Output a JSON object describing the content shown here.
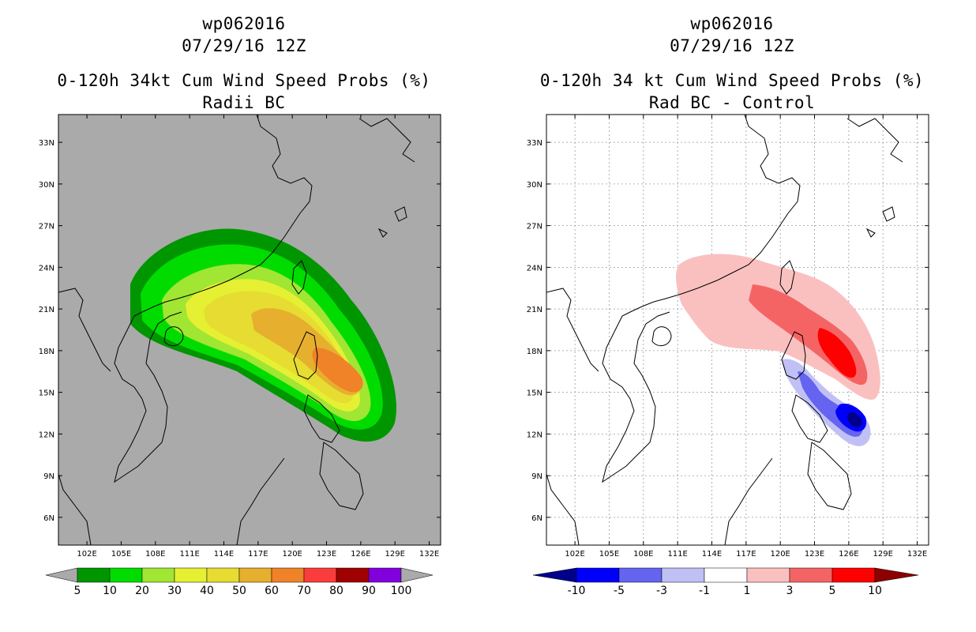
{
  "left_panel": {
    "storm_id": "wp062016",
    "datetime": "07/29/16 12Z",
    "product": "0-120h 34kt Cum Wind Speed Probs (%)",
    "subtitle": "Radii BC",
    "colorbar_labels": [
      "5",
      "10",
      "20",
      "30",
      "40",
      "50",
      "60",
      "70",
      "80",
      "90",
      "100"
    ],
    "colorbar_colors": [
      "#009600",
      "#00dc00",
      "#a0e632",
      "#e6f032",
      "#e6dc32",
      "#e6af2d",
      "#f08228",
      "#fa3c3c",
      "#a00000",
      "#8200dc"
    ],
    "land_ocean_color": "#aaaaaa"
  },
  "right_panel": {
    "storm_id": "wp062016",
    "datetime": "07/29/16 12Z",
    "product": "0-120h 34 kt Cum Wind Speed Probs (%)",
    "subtitle": "Rad BC - Control",
    "colorbar_labels": [
      "-10",
      "-5",
      "-3",
      "-1",
      "1",
      "3",
      "5",
      "10"
    ],
    "colorbar_colors": [
      "#0000fa",
      "#6464f0",
      "#c0c0f5",
      "#ffffff",
      "#fac0c0",
      "#f56464",
      "#ff0000"
    ],
    "end_low_color": "#00008c",
    "end_high_color": "#8c0000"
  },
  "axes": {
    "lat_labels": [
      "33N",
      "30N",
      "27N",
      "24N",
      "21N",
      "18N",
      "15N",
      "12N",
      "9N",
      "6N"
    ],
    "lat_values": [
      33,
      30,
      27,
      24,
      21,
      18,
      15,
      12,
      9,
      6
    ],
    "lon_labels": [
      "102E",
      "105E",
      "108E",
      "111E",
      "114E",
      "117E",
      "120E",
      "123E",
      "126E",
      "129E",
      "132E"
    ],
    "lon_values": [
      102,
      105,
      108,
      111,
      114,
      117,
      120,
      123,
      126,
      129,
      132
    ],
    "lon_range": [
      99.5,
      133
    ],
    "lat_range": [
      4,
      35
    ]
  }
}
